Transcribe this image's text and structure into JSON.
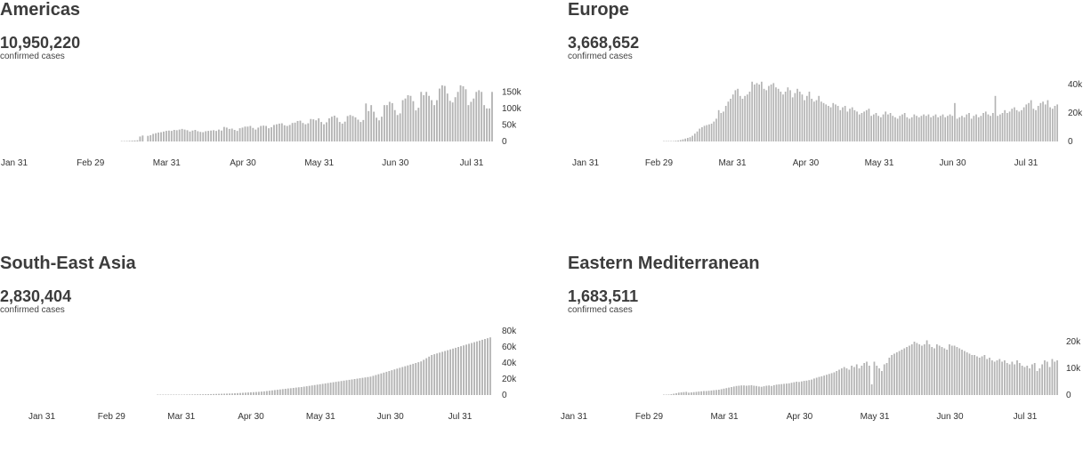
{
  "colors": {
    "bar": "#b3b3b3",
    "text": "#3c3c3c"
  },
  "chart_data": [
    {
      "type": "bar",
      "title": "Americas",
      "total": "10,950,220",
      "subtitle": "confirmed cases",
      "x_tick_labels": [
        "Jan 31",
        "Feb 29",
        "Mar 31",
        "Apr 30",
        "May 31",
        "Jun 30",
        "Jul 31"
      ],
      "y_tick_labels": [
        "150k",
        "100k",
        "50k",
        "0"
      ],
      "y_ticks": [
        150000,
        100000,
        50000,
        0
      ],
      "ylim": [
        0,
        175000
      ],
      "x_start": "2020-01-22",
      "values": [
        0,
        0,
        0,
        0,
        0,
        0,
        0,
        0,
        0,
        0,
        0,
        0,
        0,
        0,
        0,
        0,
        0,
        0,
        0,
        0,
        0,
        0,
        0,
        0,
        0,
        0,
        0,
        0,
        0,
        0,
        0,
        0,
        0,
        0,
        0,
        0,
        0,
        0,
        0,
        0,
        0,
        0,
        0,
        0,
        0,
        0,
        500,
        1000,
        1500,
        2000,
        2500,
        3000,
        3500,
        15000,
        18000,
        0,
        17000,
        19000,
        23000,
        25000,
        27000,
        28000,
        30000,
        32000,
        33000,
        32000,
        35000,
        34000,
        36000,
        38000,
        36000,
        34000,
        30000,
        33000,
        35000,
        31000,
        29000,
        28000,
        31000,
        32000,
        33000,
        34000,
        32000,
        36000,
        33000,
        44000,
        42000,
        38000,
        39000,
        35000,
        32000,
        40000,
        42000,
        45000,
        45000,
        47000,
        41000,
        36000,
        42000,
        47000,
        48000,
        47000,
        40000,
        43000,
        50000,
        52000,
        54000,
        55000,
        49000,
        47000,
        50000,
        56000,
        57000,
        62000,
        63000,
        56000,
        52000,
        55000,
        68000,
        67000,
        64000,
        70000,
        59000,
        52000,
        58000,
        70000,
        75000,
        78000,
        72000,
        59000,
        54000,
        60000,
        77000,
        80000,
        77000,
        73000,
        66000,
        59000,
        65000,
        115000,
        92000,
        110000,
        90000,
        72000,
        64000,
        75000,
        110000,
        110000,
        120000,
        116000,
        95000,
        80000,
        85000,
        125000,
        130000,
        140000,
        138000,
        122000,
        94000,
        102000,
        150000,
        140000,
        150000,
        138000,
        125000,
        110000,
        125000,
        160000,
        170000,
        168000,
        145000,
        123000,
        118000,
        134000,
        150000,
        170000,
        167000,
        158000,
        110000,
        120000,
        130000,
        150000,
        155000,
        150000,
        110000,
        100000,
        100000,
        150000
      ]
    },
    {
      "type": "bar",
      "title": "Europe",
      "total": "3,668,652",
      "subtitle": "confirmed cases",
      "x_tick_labels": [
        "Jan 31",
        "Feb 29",
        "Mar 31",
        "Apr 30",
        "May 31",
        "Jun 30",
        "Jul 31"
      ],
      "y_tick_labels": [
        "40k",
        "20k",
        "0"
      ],
      "y_ticks": [
        40000,
        20000,
        0
      ],
      "ylim": [
        0,
        40000
      ],
      "x_start": "2020-01-22",
      "values": [
        0,
        0,
        0,
        0,
        0,
        0,
        0,
        0,
        0,
        0,
        0,
        0,
        0,
        0,
        0,
        0,
        0,
        0,
        0,
        0,
        0,
        0,
        0,
        0,
        0,
        0,
        0,
        0,
        0,
        0,
        0,
        0,
        0,
        0,
        0,
        0,
        0,
        0,
        0,
        0,
        50,
        100,
        150,
        200,
        300,
        500,
        700,
        1000,
        1500,
        2000,
        2500,
        3000,
        4000,
        5500,
        7000,
        9000,
        10000,
        11000,
        11500,
        12000,
        12500,
        14000,
        16000,
        22000,
        20000,
        21000,
        25000,
        28000,
        30000,
        33000,
        36000,
        37000,
        32000,
        30000,
        32000,
        33000,
        35000,
        42000,
        40000,
        41000,
        40000,
        42000,
        37000,
        36000,
        39000,
        40000,
        41000,
        38000,
        37000,
        35000,
        33000,
        35000,
        38000,
        36000,
        31000,
        34000,
        37000,
        35000,
        33000,
        29000,
        32000,
        35000,
        30000,
        28000,
        29000,
        32000,
        28000,
        27000,
        26000,
        25000,
        24000,
        27000,
        26000,
        25000,
        22000,
        24000,
        25000,
        21000,
        23000,
        24000,
        22000,
        21000,
        19000,
        20000,
        21000,
        22000,
        23000,
        18000,
        19000,
        20000,
        18000,
        17000,
        19000,
        21000,
        19000,
        20000,
        18000,
        17000,
        16000,
        18000,
        19000,
        20000,
        17000,
        16000,
        17000,
        19000,
        18000,
        17000,
        18000,
        19000,
        18000,
        19000,
        17000,
        18000,
        19000,
        17000,
        18000,
        19000,
        17000,
        18000,
        19000,
        18000,
        27000,
        16000,
        17000,
        18000,
        17000,
        19000,
        20000,
        16000,
        18000,
        19000,
        17000,
        18000,
        20000,
        21000,
        19000,
        18000,
        20000,
        32000,
        18000,
        19000,
        20000,
        22000,
        20000,
        21000,
        23000,
        24000,
        22000,
        21000,
        22000,
        24000,
        26000,
        27000,
        29000,
        23000,
        22000,
        25000,
        27000,
        28000,
        26000,
        29000,
        24000,
        23000,
        25000,
        26000
      ]
    },
    {
      "type": "bar",
      "title": "South-East Asia",
      "total": "2,830,404",
      "subtitle": "confirmed cases",
      "x_tick_labels": [
        "Jan 31",
        "Feb 29",
        "Mar 31",
        "Apr 30",
        "May 31",
        "Jun 30",
        "Jul 31"
      ],
      "y_tick_labels": [
        "80k",
        "60k",
        "40k",
        "20k",
        "0"
      ],
      "y_ticks": [
        80000,
        60000,
        40000,
        20000,
        0
      ],
      "ylim": [
        0,
        80000
      ],
      "x_start": "2020-01-22",
      "values": [
        0,
        0,
        0,
        0,
        0,
        0,
        0,
        0,
        0,
        0,
        0,
        0,
        0,
        0,
        0,
        0,
        0,
        0,
        0,
        0,
        0,
        0,
        0,
        0,
        0,
        0,
        0,
        0,
        0,
        0,
        0,
        0,
        0,
        0,
        0,
        0,
        0,
        0,
        0,
        0,
        0,
        0,
        0,
        0,
        0,
        0,
        0,
        0,
        0,
        0,
        0,
        0,
        0,
        0,
        0,
        0,
        0,
        0,
        0,
        100,
        150,
        200,
        250,
        300,
        350,
        400,
        450,
        500,
        550,
        600,
        650,
        700,
        750,
        800,
        850,
        900,
        950,
        1000,
        1100,
        1200,
        1300,
        1400,
        1500,
        1600,
        1700,
        1800,
        1900,
        2000,
        2200,
        2400,
        2600,
        2800,
        3000,
        3200,
        3400,
        3600,
        3800,
        4000,
        4300,
        4600,
        5000,
        5400,
        5800,
        6200,
        6600,
        7000,
        7400,
        7800,
        8200,
        8500,
        8900,
        9300,
        9700,
        10000,
        10500,
        11000,
        11500,
        12000,
        12500,
        13000,
        13500,
        14000,
        14500,
        15000,
        15500,
        16000,
        16500,
        17000,
        17500,
        18000,
        18500,
        19000,
        19500,
        20000,
        20500,
        21000,
        21500,
        22000,
        22500,
        23000,
        24000,
        25000,
        26000,
        27000,
        28000,
        29000,
        30000,
        31000,
        32000,
        33000,
        34000,
        35000,
        36000,
        37000,
        38000,
        39000,
        40000,
        41000,
        42000,
        44000,
        46000,
        48000,
        50000,
        51000,
        52000,
        53000,
        54000,
        55000,
        56000,
        57000,
        58000,
        59000,
        60000,
        61000,
        62000,
        63000,
        64000,
        65000,
        66000,
        67000,
        68000,
        69000,
        70000,
        71000,
        72000
      ]
    },
    {
      "type": "bar",
      "title": "Eastern Mediterranean",
      "total": "1,683,511",
      "subtitle": "confirmed cases",
      "x_tick_labels": [
        "Jan 31",
        "Feb 29",
        "Mar 31",
        "Apr 30",
        "May 31",
        "Jun 30",
        "Jul 31"
      ],
      "y_tick_labels": [
        "20k",
        "10k",
        "0"
      ],
      "y_ticks": [
        20000,
        10000,
        0
      ],
      "ylim": [
        0,
        22000
      ],
      "x_start": "2020-01-22",
      "values": [
        0,
        0,
        0,
        0,
        0,
        0,
        0,
        0,
        0,
        0,
        0,
        0,
        0,
        0,
        0,
        0,
        0,
        0,
        0,
        0,
        0,
        0,
        0,
        0,
        0,
        0,
        0,
        0,
        0,
        0,
        0,
        0,
        0,
        0,
        0,
        0,
        0,
        0,
        50,
        100,
        200,
        300,
        500,
        700,
        900,
        1000,
        1100,
        1200,
        900,
        1000,
        1100,
        1200,
        1300,
        1400,
        1500,
        1500,
        1600,
        1700,
        1800,
        1900,
        2000,
        2200,
        2400,
        2600,
        2800,
        3000,
        3200,
        3400,
        3500,
        3600,
        3600,
        3500,
        3600,
        3700,
        3500,
        3400,
        3200,
        3100,
        3300,
        3500,
        3600,
        3400,
        3700,
        3900,
        4000,
        4100,
        4200,
        4300,
        4400,
        4600,
        4800,
        5000,
        4900,
        5100,
        5300,
        5400,
        5600,
        5800,
        6200,
        6500,
        6800,
        7000,
        7300,
        7600,
        7900,
        8200,
        8500,
        9000,
        9500,
        10000,
        10500,
        10000,
        9500,
        11000,
        10500,
        11500,
        10000,
        11000,
        12000,
        12500,
        11000,
        4000,
        12500,
        11000,
        10000,
        9000,
        11500,
        12000,
        14000,
        15000,
        15500,
        16000,
        16500,
        17000,
        17500,
        18000,
        18500,
        19000,
        20000,
        19500,
        19000,
        18500,
        19000,
        20500,
        19000,
        18000,
        17500,
        19000,
        18500,
        18000,
        17500,
        17000,
        19000,
        18500,
        18500,
        18000,
        17500,
        17000,
        16500,
        16000,
        15500,
        15000,
        15000,
        14500,
        14000,
        14500,
        15000,
        13500,
        14000,
        13000,
        12500,
        13000,
        13500,
        12500,
        13000,
        12000,
        11500,
        12500,
        11500,
        13000,
        12000,
        11000,
        10500,
        11000,
        10000,
        11500,
        12000,
        9000,
        10000,
        11500,
        13000,
        12500,
        10500,
        13500,
        12500,
        13000
      ]
    }
  ]
}
